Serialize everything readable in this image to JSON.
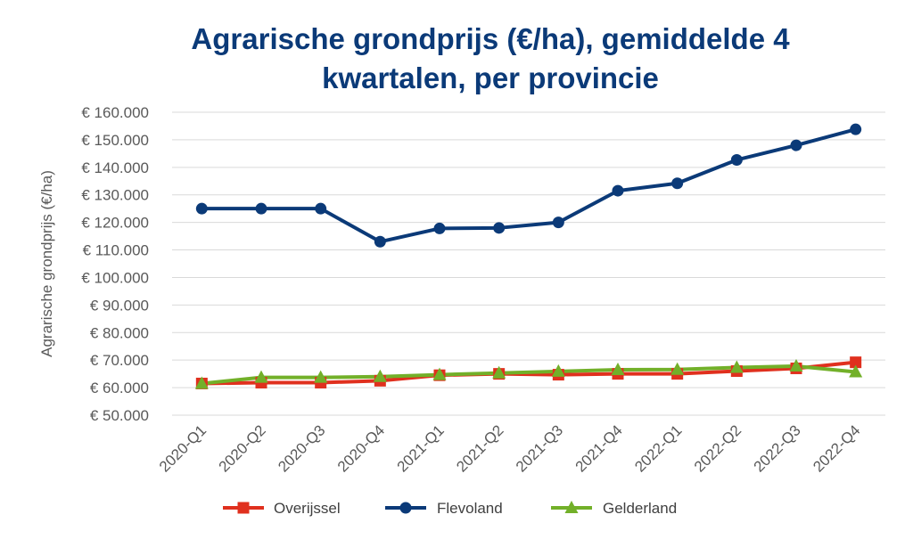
{
  "chart_data": {
    "type": "line",
    "title_lines": [
      "Agrarische grondprijs (€/ha), gemiddelde 4",
      "kwartalen, per provincie"
    ],
    "ylabel": "Agrarische grondprijs (€/ha)",
    "xlabel": "",
    "categories": [
      "2020-Q1",
      "2020-Q2",
      "2020-Q3",
      "2020-Q4",
      "2021-Q1",
      "2021-Q2",
      "2021-Q3",
      "2021-Q4",
      "2022-Q1",
      "2022-Q2",
      "2022-Q3",
      "2022-Q4"
    ],
    "ylim": [
      50000,
      160000
    ],
    "ytick_step": 10000,
    "ytick_labels": [
      "€ 50.000",
      "€ 60.000",
      "€ 70.000",
      "€ 80.000",
      "€ 90.000",
      "€ 100.000",
      "€ 110.000",
      "€ 120.000",
      "€ 130.000",
      "€ 140.000",
      "€ 150.000",
      "€ 160.000"
    ],
    "grid": true,
    "legend_position": "bottom",
    "series": [
      {
        "name": "Overijssel",
        "color": "#e0301e",
        "marker": "square",
        "values": [
          61500,
          61800,
          61800,
          62500,
          64500,
          65000,
          64700,
          65000,
          65000,
          66000,
          67000,
          69200
        ]
      },
      {
        "name": "Flevoland",
        "color": "#0b3a78",
        "marker": "circle",
        "values": [
          125000,
          125000,
          125000,
          113000,
          117800,
          118000,
          120000,
          131500,
          134200,
          142700,
          148000,
          153800
        ]
      },
      {
        "name": "Gelderland",
        "color": "#72b029",
        "marker": "triangle",
        "values": [
          61500,
          63700,
          63700,
          64000,
          64700,
          65300,
          65900,
          66500,
          66600,
          67300,
          67800,
          65700
        ]
      }
    ]
  }
}
